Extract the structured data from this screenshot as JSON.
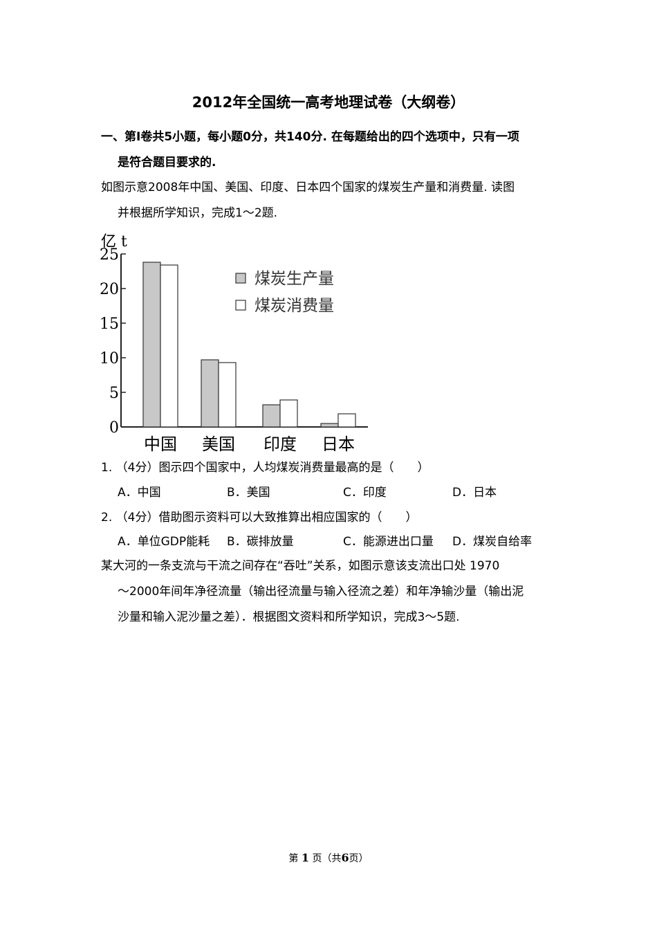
{
  "title": "2012年全国统一高考地理试卷（大纲卷）",
  "section": {
    "line1": "一、第I卷共5小题，每小题0分，共140分. 在每题给出的四个选项中，只有一项",
    "line2": "是符合题目要求的."
  },
  "intro1": {
    "line1": "如图示意2008年中国、美国、印度、日本四个国家的煤炭生产量和消费量. 读图",
    "line2": "并根据所学知识，完成1～2题."
  },
  "chart_data": {
    "type": "bar",
    "ylabel": "亿 t",
    "ylim": [
      0,
      25
    ],
    "yticks": [
      "0",
      "5",
      "10",
      "15",
      "20",
      "25"
    ],
    "categories": [
      "中国",
      "美国",
      "印度",
      "日本"
    ],
    "series": [
      {
        "name": "煤炭生产量",
        "values": [
          23.8,
          9.7,
          3.2,
          0.5
        ],
        "color": "#c8c8c8"
      },
      {
        "name": "煤炭消费量",
        "values": [
          23.4,
          9.3,
          3.9,
          1.9
        ],
        "color": "#ffffff"
      }
    ],
    "legend": "top-right",
    "grid": false
  },
  "questions": [
    {
      "stem": "1. （4分）图示四个国家中，人均煤炭消费量最高的是（　　）",
      "options": [
        "A．中国",
        "B．美国",
        "C．印度",
        "D．日本"
      ]
    },
    {
      "stem": "2. （4分）借助图示资料可以大致推算出相应国家的（　　）",
      "options": [
        "A．单位GDP能耗",
        "B．碳排放量",
        "C．能源进出口量",
        "D．煤炭自给率"
      ]
    }
  ],
  "intro2": {
    "line1": "某大河的一条支流与干流之间存在“吞吐”关系，如图示意该支流出口处 1970",
    "line2": "～2000年间年净径流量（输出径流量与输入径流之差）和年净输沙量（输出泥",
    "line3": "沙量和输入泥沙量之差）．根据图文资料和所学知识，完成3～5题."
  },
  "footer": {
    "prefix": "第",
    "page": "1",
    "middle": "页（共",
    "total": "6",
    "suffix": "页）"
  }
}
